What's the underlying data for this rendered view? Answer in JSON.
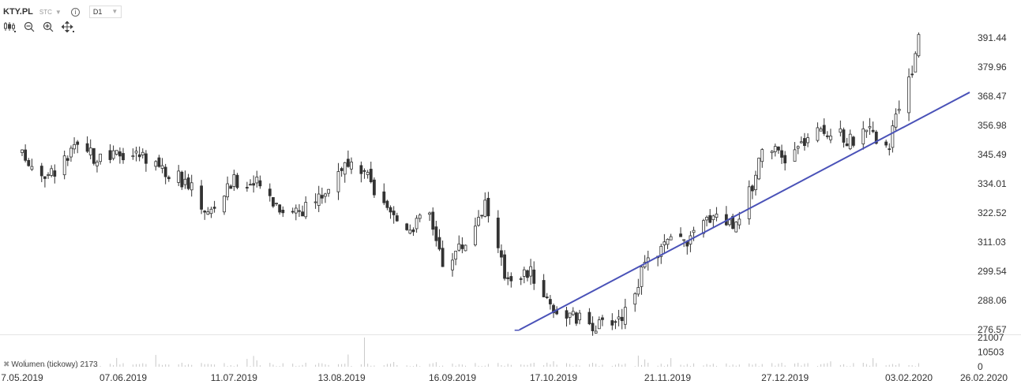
{
  "header": {
    "symbol": "KTY.PL",
    "timezone": "STC",
    "interval": "D1"
  },
  "toolbar": {
    "icons": [
      "candles-icon",
      "zoom-out-icon",
      "zoom-in-icon",
      "move-icon"
    ]
  },
  "volume_panel": {
    "label": "Wolumen (tickowy) 2173"
  },
  "colors": {
    "up": "#ffffff",
    "down": "#333333",
    "wick": "#333333",
    "trendline": "#4a52b8",
    "grid": "#e4e4e4",
    "volume": "#c8c8c8"
  },
  "chart_data": {
    "type": "candlestick",
    "symbol": "KTY.PL",
    "interval": "D1",
    "y_ticks": [
      "391.44",
      "379.96",
      "368.47",
      "356.98",
      "345.49",
      "334.01",
      "322.52",
      "311.03",
      "299.54",
      "288.06",
      "276.57"
    ],
    "ylim": [
      276.57,
      391.44
    ],
    "x_ticks": [
      "7.05.2019",
      "07.06.2019",
      "11.07.2019",
      "13.08.2019",
      "16.09.2019",
      "17.10.2019",
      "21.11.2019",
      "27.12.2019",
      "03.02.2020",
      "26.02.2020"
    ],
    "volume_ticks": [
      "21007",
      "10503",
      "0"
    ],
    "volume_max": 21007,
    "trendline": {
      "start_date": "07.10.2019",
      "start_price": 276.5,
      "end_date": "26.02.2020",
      "end_price": 370.0
    },
    "anchors": [
      [
        "07.05.2019",
        345
      ],
      [
        "15.05.2019",
        337
      ],
      [
        "24.05.2019",
        348
      ],
      [
        "31.05.2019",
        343
      ],
      [
        "07.06.2019",
        346
      ],
      [
        "14.06.2019",
        345
      ],
      [
        "20.06.2019",
        339
      ],
      [
        "27.06.2019",
        334
      ],
      [
        "03.07.2019",
        322
      ],
      [
        "11.07.2019",
        335
      ],
      [
        "18.07.2019",
        334
      ],
      [
        "26.07.2019",
        324
      ],
      [
        "02.08.2019",
        324
      ],
      [
        "08.08.2019",
        331
      ],
      [
        "13.08.2019",
        341
      ],
      [
        "20.08.2019",
        338
      ],
      [
        "27.08.2019",
        322
      ],
      [
        "03.09.2019",
        317
      ],
      [
        "09.09.2019",
        322
      ],
      [
        "13.09.2019",
        303
      ],
      [
        "20.09.2019",
        311
      ],
      [
        "26.09.2019",
        327
      ],
      [
        "02.10.2019",
        298
      ],
      [
        "10.10.2019",
        299
      ],
      [
        "17.10.2019",
        285
      ],
      [
        "24.10.2019",
        281
      ],
      [
        "31.10.2019",
        278
      ],
      [
        "07.11.2019",
        282
      ],
      [
        "14.11.2019",
        301
      ],
      [
        "21.11.2019",
        311
      ],
      [
        "28.11.2019",
        312
      ],
      [
        "05.12.2019",
        323
      ],
      [
        "11.12.2019",
        318
      ],
      [
        "17.12.2019",
        333
      ],
      [
        "20.12.2019",
        350
      ],
      [
        "27.12.2019",
        343
      ],
      [
        "03.01.2020",
        352
      ],
      [
        "09.01.2020",
        355
      ],
      [
        "16.01.2020",
        351
      ],
      [
        "22.01.2020",
        354
      ],
      [
        "28.01.2020",
        349
      ],
      [
        "31.01.2020",
        364
      ],
      [
        "04.02.2020",
        378
      ],
      [
        "06.02.2020",
        393
      ]
    ]
  }
}
